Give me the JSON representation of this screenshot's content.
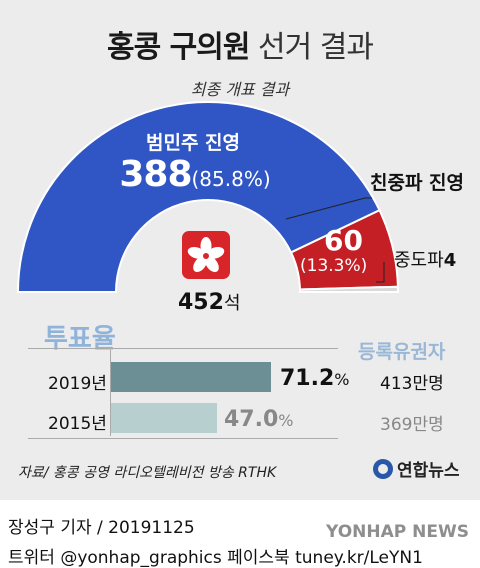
{
  "title": {
    "bold": "홍콩 구의원",
    "light": "선거 결과"
  },
  "subtitle": "최종 개표 결과",
  "chart_data": [
    {
      "type": "pie",
      "layout": "semicircle",
      "title": "최종 개표 결과",
      "total": 452,
      "total_unit": "석",
      "total_label": "452석",
      "slices": [
        {
          "name": "범민주 진영",
          "value": 388,
          "percent_label": "(85.8%)",
          "color": "#2f56c4"
        },
        {
          "name": "친중파 진영",
          "value": 60,
          "percent_label": "(13.3%)",
          "color": "#c41f24"
        },
        {
          "name": "중도파",
          "value": 4,
          "label": "중도파 4",
          "color": "#d9d9d9"
        }
      ]
    },
    {
      "type": "bar",
      "orientation": "horizontal",
      "title": "투표율",
      "categories": [
        "2019년",
        "2015년"
      ],
      "values": [
        71.2,
        47.0
      ],
      "value_labels": [
        "71.2%",
        "47.0%"
      ],
      "xlim": [
        0,
        100
      ],
      "colors": [
        "#6c8f95",
        "#b8cfd0"
      ],
      "side_title": "등록유권자",
      "side_values": [
        "413만명",
        "369만명"
      ]
    }
  ],
  "labels": {
    "pro_democracy": "범민주 진영",
    "pro_democracy_value": "388",
    "pro_democracy_pct": "(85.8%)",
    "pro_beijing": "친중파 진영",
    "pro_beijing_value": "60",
    "pro_beijing_pct": "(13.3%)",
    "centrist": "중도파",
    "centrist_value": "4",
    "total_value": "452",
    "total_unit": "석"
  },
  "turnout": {
    "heading": "투표율",
    "voters_heading": "등록유권자",
    "rows": [
      {
        "year": "2019년",
        "pct_num": "71.2",
        "pct_sign": "%",
        "voters": "413만명"
      },
      {
        "year": "2015년",
        "pct_num": "47.0",
        "pct_sign": "%",
        "voters": "369만명"
      }
    ]
  },
  "source": "자료/ 홍콩 공영 라디오텔레비전 방송 RTHK",
  "logo_text": "연합뉴스",
  "byline": "장성구 기자 / 20191125",
  "social": "트위터 @yonhap_graphics  페이스북 tuney.kr/LeYN1",
  "watermark": "YONHAP NEWS",
  "colors": {
    "pro_democracy": "#2f56c4",
    "pro_beijing": "#c41f24",
    "centrist": "#d9d9d9",
    "bar_2019": "#6c8f95",
    "bar_2015": "#b8cfd0",
    "heading_blue": "#8fb3d9",
    "panel_bg": "#ececec"
  },
  "icons": {
    "flag": "hong-kong-flag-icon",
    "logo": "yonhap-logo-icon"
  }
}
